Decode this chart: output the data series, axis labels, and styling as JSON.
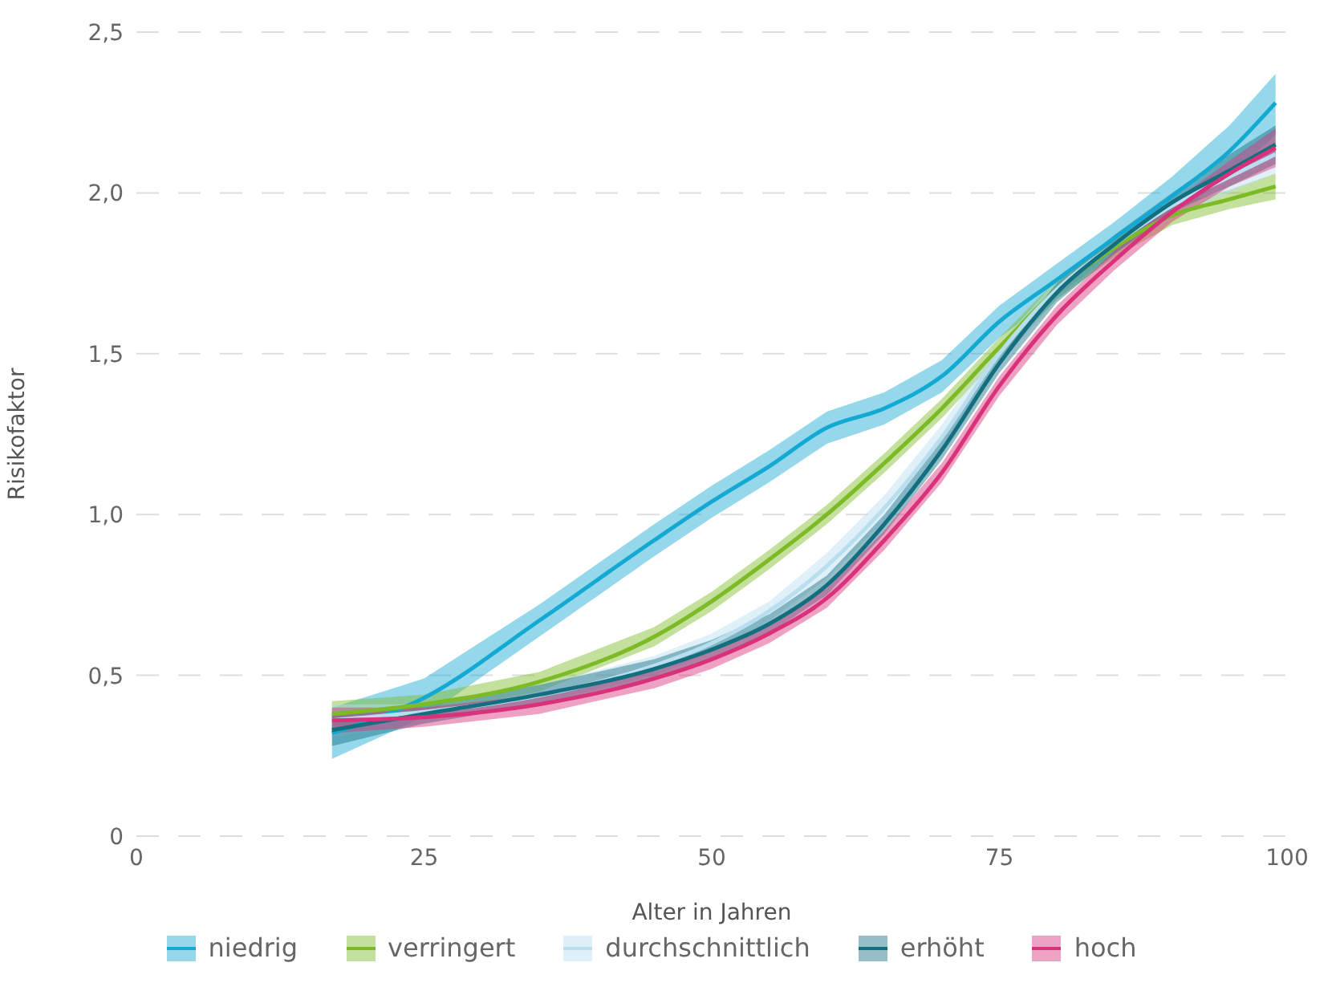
{
  "chart_data": {
    "type": "line",
    "xlabel": "Alter in Jahren",
    "ylabel": "Risikofaktor",
    "x": [
      17,
      25,
      35,
      45,
      50,
      55,
      60,
      65,
      70,
      75,
      80,
      85,
      90,
      95,
      99
    ],
    "xlim": [
      0,
      100
    ],
    "xticks": [
      0,
      25,
      50,
      75,
      100
    ],
    "ylim": [
      0,
      2.5
    ],
    "yticks": [
      0,
      {
        "value": 0.5,
        "label": "0,5"
      },
      {
        "value": 1,
        "label": "1,0"
      },
      {
        "value": 1.5,
        "label": "1,5"
      },
      {
        "value": 2,
        "label": "2,0"
      },
      {
        "value": 2.5,
        "label": "2,5"
      }
    ],
    "grid": "y",
    "legend": "bottom",
    "marker": "none",
    "line_style": "solid",
    "series": [
      {
        "name": "niedrig",
        "color": "#14a9d2",
        "values": [
          0.32,
          0.43,
          0.67,
          0.92,
          1.04,
          1.15,
          1.27,
          1.33,
          1.43,
          1.6,
          1.73,
          1.86,
          1.99,
          2.13,
          2.28
        ],
        "lower": [
          0.24,
          0.37,
          0.62,
          0.87,
          0.99,
          1.1,
          1.22,
          1.28,
          1.38,
          1.55,
          1.68,
          1.81,
          1.93,
          2.05,
          2.18
        ],
        "upper": [
          0.4,
          0.49,
          0.72,
          0.97,
          1.09,
          1.2,
          1.32,
          1.38,
          1.48,
          1.65,
          1.78,
          1.91,
          2.05,
          2.21,
          2.37
        ]
      },
      {
        "name": "verringert",
        "color": "#7cba26",
        "values": [
          0.38,
          0.41,
          0.48,
          0.62,
          0.73,
          0.86,
          1.0,
          1.16,
          1.33,
          1.52,
          1.7,
          1.83,
          1.93,
          1.98,
          2.02
        ],
        "lower": [
          0.34,
          0.38,
          0.45,
          0.59,
          0.7,
          0.83,
          0.97,
          1.13,
          1.3,
          1.49,
          1.67,
          1.8,
          1.9,
          1.95,
          1.98
        ],
        "upper": [
          0.42,
          0.44,
          0.51,
          0.65,
          0.76,
          0.89,
          1.03,
          1.19,
          1.36,
          1.55,
          1.73,
          1.86,
          1.96,
          2.01,
          2.06
        ]
      },
      {
        "name": "durchschnittlich",
        "color": "#b9def0",
        "values": [
          0.36,
          null,
          null,
          0.53,
          0.6,
          0.7,
          0.84,
          1.02,
          1.24,
          1.5,
          1.7,
          1.84,
          1.96,
          2.05,
          2.12
        ],
        "lower": [
          0.31,
          0.35,
          0.41,
          0.5,
          0.57,
          0.67,
          0.8,
          0.98,
          1.2,
          1.47,
          1.67,
          1.81,
          1.92,
          2.0,
          2.06
        ],
        "upper": [
          0.41,
          0.41,
          0.47,
          0.56,
          0.63,
          0.73,
          0.88,
          1.06,
          1.28,
          1.53,
          1.73,
          1.87,
          2.0,
          2.1,
          2.18
        ]
      },
      {
        "name": "erhöht",
        "color": "#136f80",
        "values": [
          0.33,
          0.38,
          0.44,
          0.52,
          0.58,
          0.66,
          0.78,
          0.97,
          1.2,
          1.47,
          1.69,
          1.84,
          1.97,
          2.07,
          2.15
        ],
        "lower": [
          0.28,
          0.35,
          0.41,
          0.49,
          0.55,
          0.63,
          0.75,
          0.94,
          1.17,
          1.44,
          1.66,
          1.81,
          1.94,
          2.02,
          2.09
        ],
        "upper": [
          0.38,
          0.41,
          0.47,
          0.55,
          0.61,
          0.69,
          0.81,
          1.0,
          1.23,
          1.5,
          1.72,
          1.87,
          2.0,
          2.12,
          2.21
        ]
      },
      {
        "name": "hoch",
        "color": "#d9317a",
        "values": [
          0.36,
          0.37,
          0.41,
          0.49,
          0.55,
          0.63,
          0.74,
          0.92,
          1.13,
          1.4,
          1.62,
          1.79,
          1.94,
          2.06,
          2.14
        ],
        "lower": [
          0.32,
          0.34,
          0.38,
          0.46,
          0.52,
          0.6,
          0.71,
          0.89,
          1.1,
          1.37,
          1.59,
          1.76,
          1.91,
          2.02,
          2.08
        ],
        "upper": [
          0.4,
          0.4,
          0.44,
          0.52,
          0.58,
          0.66,
          0.77,
          0.95,
          1.16,
          1.43,
          1.65,
          1.82,
          1.97,
          2.1,
          2.2
        ]
      }
    ]
  }
}
